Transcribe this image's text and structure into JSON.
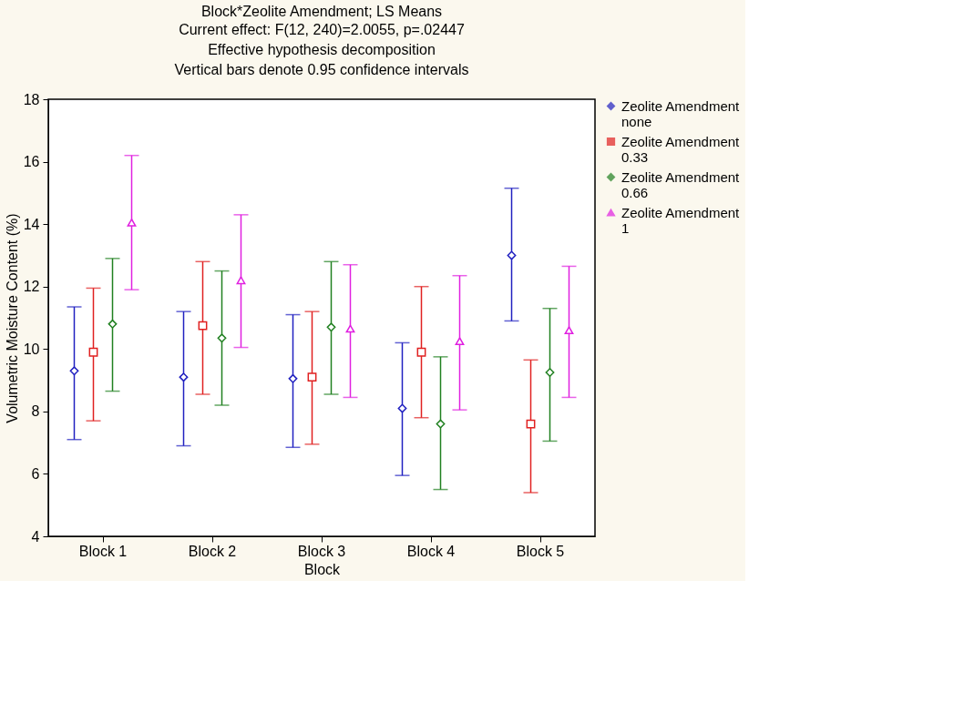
{
  "chart_data": {
    "type": "scatter",
    "title": "Block*Zeolite Amendment; LS Means",
    "subtitle": "Current effect: F(12, 240)=2.0055, p=.02447\nEffective hypothesis decomposition\nVertical bars denote 0.95 confidence intervals",
    "xlabel": "Block",
    "ylabel": "Volumetric Moisture Content (%)",
    "categories": [
      "Block 1",
      "Block 2",
      "Block 3",
      "Block 4",
      "Block 5"
    ],
    "series": [
      {
        "name": "Zeolite Amendment none",
        "color": "#2020c0",
        "marker": "diamond",
        "values": [
          9.3,
          9.1,
          9.05,
          8.1,
          13.0
        ],
        "errors": [
          [
            7.1,
            11.35
          ],
          [
            6.9,
            11.2
          ],
          [
            6.85,
            11.1
          ],
          [
            5.95,
            10.2
          ],
          [
            10.9,
            15.15
          ]
        ]
      },
      {
        "name": "Zeolite Amendment 0.33",
        "color": "#e02020",
        "marker": "square",
        "values": [
          9.9,
          10.75,
          9.1,
          9.9,
          7.6
        ],
        "errors": [
          [
            7.7,
            11.95
          ],
          [
            8.55,
            12.8
          ],
          [
            6.95,
            11.2
          ],
          [
            7.8,
            12.0
          ],
          [
            5.4,
            9.65
          ]
        ]
      },
      {
        "name": "Zeolite Amendment 0.66",
        "color": "#208020",
        "marker": "diamond",
        "values": [
          10.8,
          10.35,
          10.7,
          7.6,
          9.25
        ],
        "errors": [
          [
            8.65,
            12.9
          ],
          [
            8.2,
            12.5
          ],
          [
            8.55,
            12.8
          ],
          [
            5.5,
            9.75
          ],
          [
            7.05,
            11.3
          ]
        ]
      },
      {
        "name": "Zeolite Amendment 1",
        "color": "#e020e0",
        "marker": "triangle",
        "values": [
          14.05,
          12.2,
          10.65,
          10.25,
          10.6
        ],
        "errors": [
          [
            11.9,
            16.2
          ],
          [
            10.05,
            14.3
          ],
          [
            8.45,
            12.7
          ],
          [
            8.05,
            12.35
          ],
          [
            8.45,
            12.65
          ]
        ]
      }
    ],
    "ylim": [
      4,
      18
    ],
    "yticks": [
      4,
      6,
      8,
      10,
      12,
      14,
      16,
      18
    ],
    "grid": false,
    "legend": "right"
  }
}
